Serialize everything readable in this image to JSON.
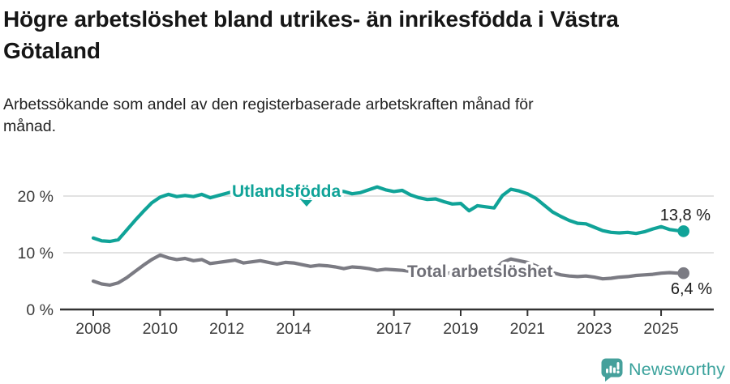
{
  "header": {
    "title": "Högre arbetslöshet bland utrikes- än inrikesfödda i Västra Götaland",
    "subtitle": "Arbetssökande som andel av den registerbaserade arbetskraften månad för månad."
  },
  "footer": {
    "brand": "Newsworthy"
  },
  "colors": {
    "utlandsfodda_teal": "#10a398",
    "total_gray": "#7b7b83",
    "grid": "#d8d8d8",
    "axis_line": "#333333",
    "axis_text": "#3a3a3a",
    "value_text": "#1a1a1a",
    "brand_teal": "#3ba29c"
  },
  "chart_data": {
    "type": "line",
    "title": "Högre arbetslöshet bland utrikes- än inrikesfödda i Västra Götaland",
    "subtitle": "Arbetssökande som andel av den registerbaserade arbetskraften månad för månad.",
    "y_unit": "%",
    "ylim": [
      0,
      23
    ],
    "x_range": [
      2007.9,
      2025.8
    ],
    "grid": "horizontal-only",
    "legend_position": "inline-labels",
    "y_ticks": [
      {
        "value": 0,
        "label": "0 %"
      },
      {
        "value": 10,
        "label": "10 %"
      },
      {
        "value": 20,
        "label": "20 %"
      }
    ],
    "x_ticks": [
      {
        "value": 2008,
        "label": "2008"
      },
      {
        "value": 2010,
        "label": "2010"
      },
      {
        "value": 2012,
        "label": "2012"
      },
      {
        "value": 2014,
        "label": "2014"
      },
      {
        "value": 2017,
        "label": "2017"
      },
      {
        "value": 2019,
        "label": "2019"
      },
      {
        "value": 2021,
        "label": "2021"
      },
      {
        "value": 2023,
        "label": "2023"
      },
      {
        "value": 2025,
        "label": "2025"
      }
    ],
    "x": [
      2008,
      2008.25,
      2008.5,
      2008.75,
      2009,
      2009.25,
      2009.5,
      2009.75,
      2010,
      2010.25,
      2010.5,
      2010.75,
      2011,
      2011.25,
      2011.5,
      2011.75,
      2012,
      2012.25,
      2012.5,
      2012.75,
      2013,
      2013.25,
      2013.5,
      2013.75,
      2014,
      2014.25,
      2014.5,
      2014.75,
      2015,
      2015.25,
      2015.5,
      2015.75,
      2016,
      2016.25,
      2016.5,
      2016.75,
      2017,
      2017.25,
      2017.5,
      2017.75,
      2018,
      2018.25,
      2018.5,
      2018.75,
      2019,
      2019.25,
      2019.5,
      2019.75,
      2020,
      2020.25,
      2020.5,
      2020.75,
      2021,
      2021.25,
      2021.5,
      2021.75,
      2022,
      2022.25,
      2022.5,
      2022.75,
      2023,
      2023.25,
      2023.5,
      2023.75,
      2024,
      2024.25,
      2024.5,
      2024.75,
      2025,
      2025.25,
      2025.5,
      2025.67
    ],
    "series": [
      {
        "name": "Utlandsfödda",
        "color": "#10a398",
        "end_label": "13,8 %",
        "end_value": 13.8,
        "values": [
          12.6,
          12.1,
          12.0,
          12.3,
          14.0,
          15.7,
          17.3,
          18.8,
          19.8,
          20.3,
          19.9,
          20.1,
          19.9,
          20.3,
          19.7,
          20.1,
          20.5,
          20.9,
          20.4,
          20.2,
          20.4,
          20.2,
          20.5,
          20.1,
          19.9,
          19.6,
          19.8,
          20.2,
          20.6,
          21.0,
          20.8,
          20.4,
          20.6,
          21.1,
          21.6,
          21.1,
          20.8,
          21.0,
          20.2,
          19.7,
          19.4,
          19.5,
          19.0,
          18.6,
          18.7,
          17.4,
          18.3,
          18.1,
          17.9,
          20.1,
          21.2,
          20.9,
          20.4,
          19.6,
          18.4,
          17.2,
          16.4,
          15.7,
          15.2,
          15.1,
          14.5,
          13.9,
          13.6,
          13.5,
          13.6,
          13.4,
          13.7,
          14.2,
          14.6,
          14.1,
          13.9,
          13.8
        ]
      },
      {
        "name": "Total arbetslöshet",
        "color": "#7b7b83",
        "end_label": "6,4 %",
        "end_value": 6.4,
        "values": [
          5.0,
          4.5,
          4.3,
          4.7,
          5.6,
          6.7,
          7.8,
          8.8,
          9.6,
          9.1,
          8.8,
          9.0,
          8.6,
          8.8,
          8.1,
          8.3,
          8.5,
          8.7,
          8.2,
          8.4,
          8.6,
          8.3,
          8.0,
          8.3,
          8.2,
          7.9,
          7.6,
          7.8,
          7.7,
          7.5,
          7.2,
          7.5,
          7.4,
          7.2,
          6.9,
          7.1,
          7.0,
          6.9,
          6.7,
          6.6,
          6.7,
          6.5,
          6.3,
          6.5,
          6.5,
          6.3,
          6.5,
          6.6,
          6.9,
          8.3,
          8.9,
          8.6,
          8.3,
          7.7,
          7.1,
          6.5,
          6.1,
          5.9,
          5.8,
          5.9,
          5.7,
          5.4,
          5.5,
          5.7,
          5.8,
          6.0,
          6.1,
          6.2,
          6.4,
          6.5,
          6.4,
          6.4
        ]
      }
    ]
  }
}
